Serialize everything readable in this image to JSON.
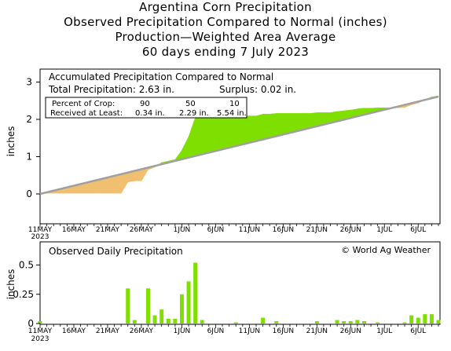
{
  "header": {
    "title": "Argentina Corn Precipitation",
    "subtitle1": "Observed Precipitation Compared to Normal (inches)",
    "subtitle2": "Production—Weighted Area Average",
    "subtitle3": "60 days ending 7 July 2023"
  },
  "colors": {
    "surplus": "#7fe000",
    "deficit": "#f0c070",
    "normal_line": "#a0a0a0",
    "daily_bar": "#7fe000"
  },
  "chart_data": [
    {
      "type": "area",
      "title": "Accumulated Precipitation Compared to Normal",
      "ylabel": "inches",
      "ylim": [
        -0.5,
        3.2
      ],
      "yticks": [
        "0",
        "1",
        "2",
        "3"
      ],
      "total_label": "Total Precipitation: 2.63 in.",
      "surplus_label": "Surplus: 0.02 in.",
      "crop_table": {
        "row1_label": "Percent of Crop:",
        "row1_values": [
          "90",
          "50",
          "10"
        ],
        "row2_label": "Received at Least:",
        "row2_values": [
          "0.34 in.",
          "2.29 in.",
          "5.54 in."
        ]
      },
      "x_tick_labels": [
        "11MAY",
        "16MAY",
        "21MAY",
        "26MAY",
        "1JUN",
        "6JUN",
        "11JUN",
        "16JUN",
        "21JUN",
        "26JUN",
        "1JUL",
        "6JUL"
      ],
      "x_year_label": "2023",
      "series": [
        {
          "name": "Normal",
          "x": [
            0,
            59
          ],
          "values": [
            0.0,
            2.61
          ]
        },
        {
          "name": "Observed",
          "x": [
            0,
            1,
            2,
            3,
            4,
            5,
            6,
            7,
            8,
            9,
            10,
            11,
            12,
            13,
            14,
            15,
            16,
            17,
            18,
            19,
            20,
            21,
            22,
            23,
            24,
            25,
            26,
            27,
            28,
            29,
            30,
            31,
            32,
            33,
            34,
            35,
            36,
            37,
            38,
            39,
            40,
            41,
            42,
            43,
            44,
            45,
            46,
            47,
            48,
            49,
            50,
            51,
            52,
            53,
            54,
            55,
            56,
            57,
            58,
            59
          ],
          "values": [
            0.02,
            0.02,
            0.02,
            0.02,
            0.02,
            0.02,
            0.02,
            0.02,
            0.02,
            0.02,
            0.02,
            0.02,
            0.02,
            0.32,
            0.35,
            0.35,
            0.65,
            0.72,
            0.84,
            0.88,
            0.92,
            1.17,
            1.53,
            2.05,
            2.08,
            2.08,
            2.08,
            2.08,
            2.08,
            2.09,
            2.09,
            2.09,
            2.09,
            2.14,
            2.14,
            2.16,
            2.16,
            2.16,
            2.16,
            2.16,
            2.16,
            2.18,
            2.18,
            2.18,
            2.21,
            2.23,
            2.25,
            2.28,
            2.3,
            2.3,
            2.31,
            2.31,
            2.31,
            2.31,
            2.32,
            2.39,
            2.44,
            2.52,
            2.6,
            2.63
          ]
        }
      ]
    },
    {
      "type": "bar",
      "title": "Observed Daily Precipitation",
      "credit": "© World Ag Weather",
      "ylabel": "inches",
      "ylim": [
        0,
        0.6
      ],
      "yticks": [
        "0",
        "0.25",
        "0.5"
      ],
      "x": [
        0,
        1,
        2,
        3,
        4,
        5,
        6,
        7,
        8,
        9,
        10,
        11,
        12,
        13,
        14,
        15,
        16,
        17,
        18,
        19,
        20,
        21,
        22,
        23,
        24,
        25,
        26,
        27,
        28,
        29,
        30,
        31,
        32,
        33,
        34,
        35,
        36,
        37,
        38,
        39,
        40,
        41,
        42,
        43,
        44,
        45,
        46,
        47,
        48,
        49,
        50,
        51,
        52,
        53,
        54,
        55,
        56,
        57,
        58,
        59
      ],
      "values": [
        0.02,
        0,
        0,
        0,
        0,
        0,
        0,
        0,
        0,
        0,
        0,
        0,
        0,
        0.3,
        0.03,
        0,
        0.3,
        0.07,
        0.12,
        0.04,
        0.04,
        0.25,
        0.36,
        0.52,
        0.03,
        0,
        0,
        0,
        0,
        0.01,
        0,
        0,
        0,
        0.05,
        0,
        0.02,
        0,
        0,
        0,
        0,
        0,
        0.02,
        0,
        0,
        0.03,
        0.02,
        0.02,
        0.03,
        0.02,
        0,
        0.01,
        0,
        0,
        0,
        0.01,
        0.07,
        0.05,
        0.08,
        0.08,
        0.03
      ]
    }
  ]
}
